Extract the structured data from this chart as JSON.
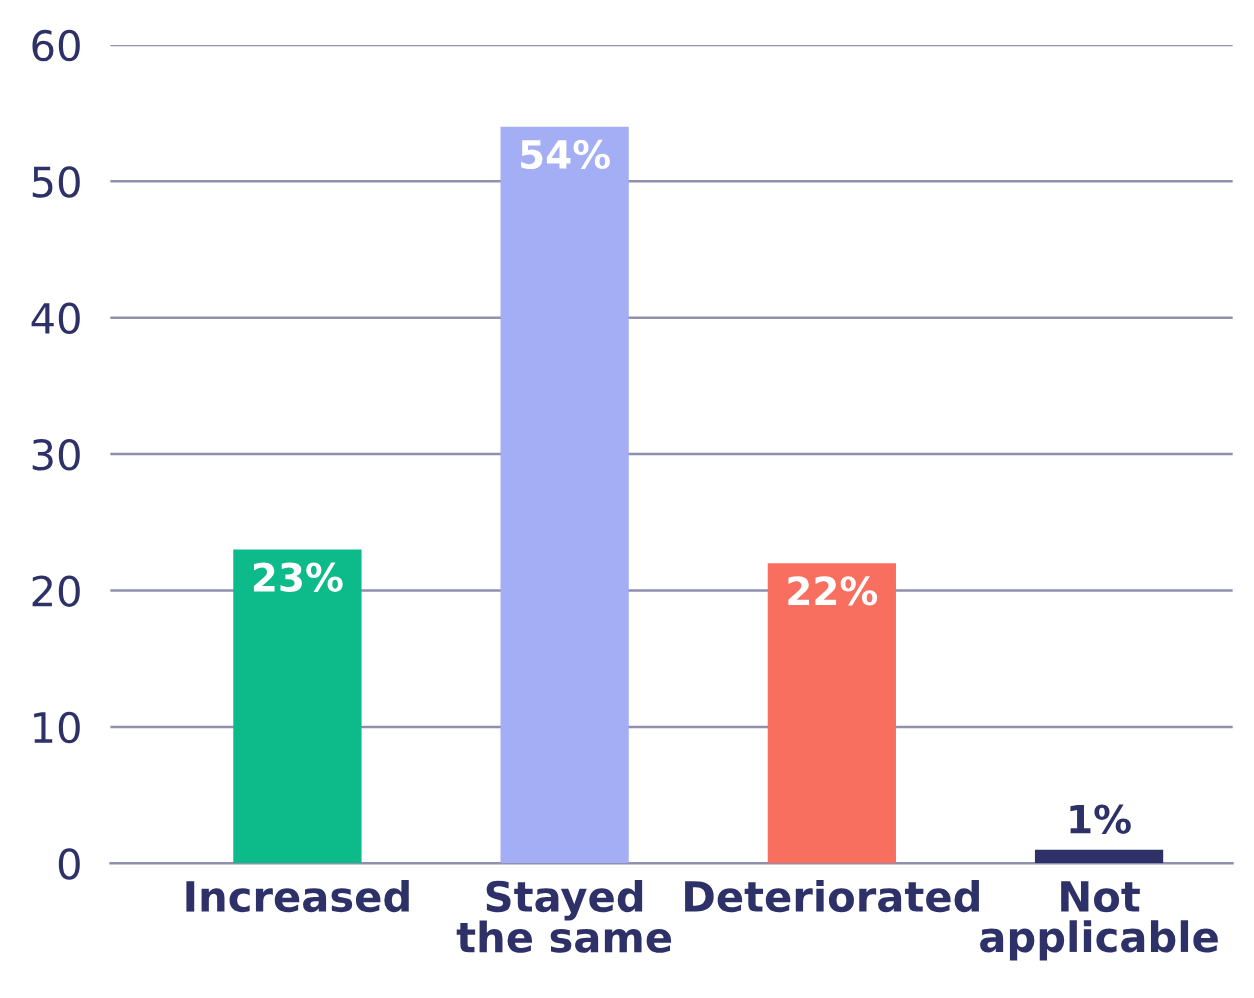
{
  "chart_data": {
    "type": "bar",
    "categories": [
      "Increased",
      "Stayed\nthe same",
      "Deteriorated",
      "Not\napplicable"
    ],
    "values": [
      23,
      54,
      22,
      1
    ],
    "colors": [
      "#0dbb8a",
      "#a3aef4",
      "#f96f5f",
      "#2e3167"
    ],
    "value_labels": [
      "23%",
      "54%",
      "22%",
      "1%"
    ],
    "ylim": [
      0,
      60
    ],
    "yticks": [
      0,
      10,
      20,
      30,
      40,
      50,
      60
    ],
    "grid": "y",
    "legend": false
  }
}
